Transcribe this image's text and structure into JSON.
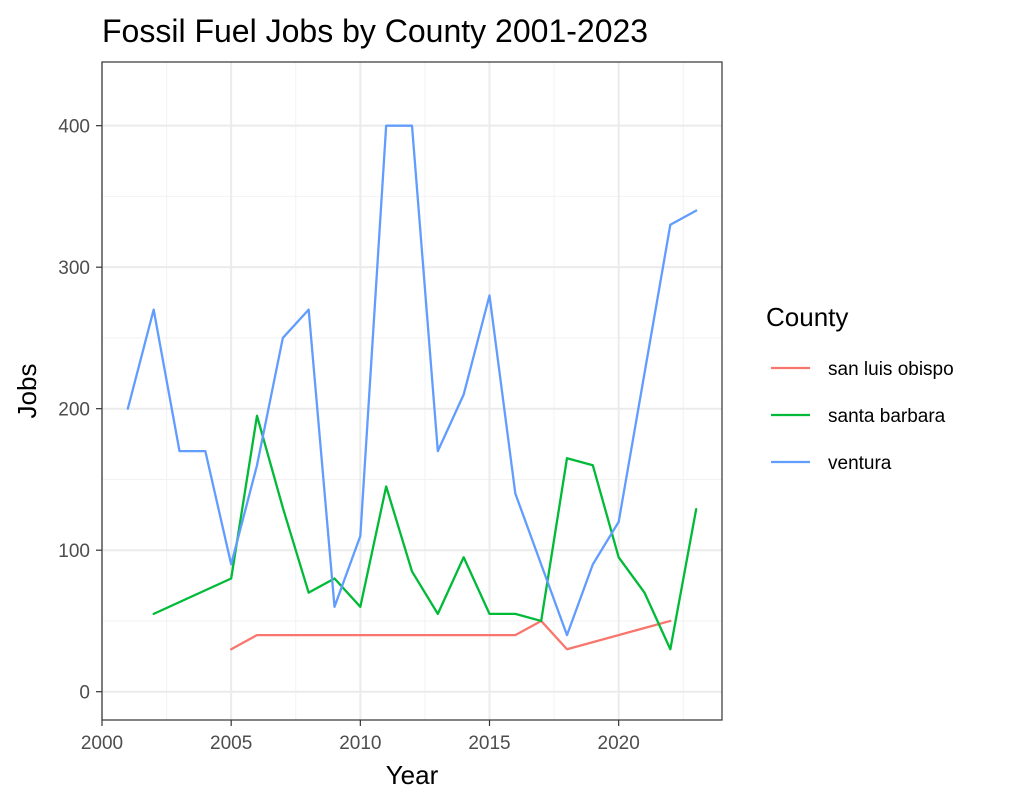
{
  "chart_data": {
    "type": "line",
    "title": "Fossil Fuel Jobs by County 2001-2023",
    "xlabel": "Year",
    "ylabel": "Jobs",
    "xlim": [
      2000,
      2024
    ],
    "ylim": [
      -20,
      445
    ],
    "x_ticks": [
      2000,
      2005,
      2010,
      2015,
      2020
    ],
    "x_tick_labels": [
      "2000",
      "2005",
      "2010",
      "2015",
      "2020"
    ],
    "y_ticks": [
      0,
      100,
      200,
      300,
      400
    ],
    "y_tick_labels": [
      "0",
      "100",
      "200",
      "300",
      "400"
    ],
    "grid": true,
    "legend": {
      "title": "County",
      "placement": "right"
    },
    "series": [
      {
        "name": "san luis obispo",
        "color": "#F8766D",
        "x": [
          2005,
          2006,
          2007,
          2008,
          2009,
          2010,
          2011,
          2012,
          2013,
          2014,
          2015,
          2016,
          2017,
          2018,
          2022
        ],
        "y": [
          30,
          40,
          40,
          40,
          40,
          40,
          40,
          40,
          40,
          40,
          40,
          40,
          50,
          30,
          50
        ]
      },
      {
        "name": "santa barbara",
        "color": "#00BA38",
        "x": [
          2002,
          2005,
          2006,
          2007,
          2008,
          2009,
          2010,
          2011,
          2012,
          2013,
          2014,
          2015,
          2016,
          2017,
          2018,
          2019,
          2020,
          2021,
          2022,
          2023
        ],
        "y": [
          55,
          80,
          195,
          130,
          70,
          80,
          60,
          145,
          85,
          55,
          95,
          55,
          55,
          50,
          165,
          160,
          95,
          70,
          30,
          129
        ]
      },
      {
        "name": "ventura",
        "color": "#619CFF",
        "x": [
          2001,
          2002,
          2003,
          2004,
          2005,
          2006,
          2007,
          2008,
          2009,
          2010,
          2011,
          2012,
          2013,
          2014,
          2015,
          2016,
          2017,
          2018,
          2019,
          2020,
          2022,
          2023
        ],
        "y": [
          200,
          270,
          170,
          170,
          90,
          160,
          250,
          270,
          60,
          110,
          400,
          400,
          170,
          210,
          280,
          140,
          90,
          40,
          90,
          120,
          330,
          340
        ]
      }
    ]
  }
}
